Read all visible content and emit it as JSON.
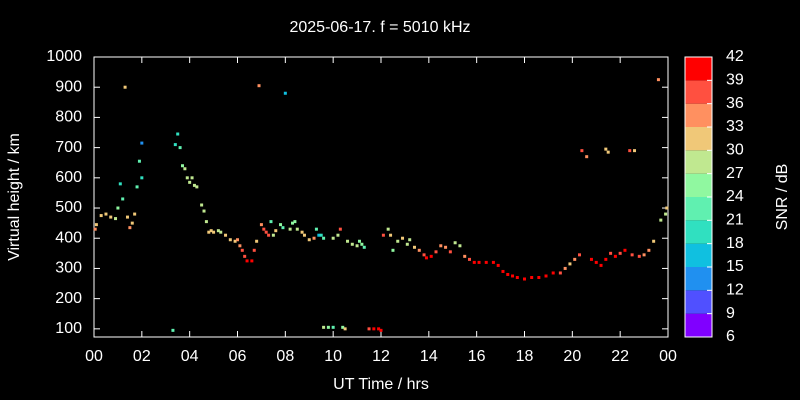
{
  "chart_data": {
    "type": "scatter",
    "title": "2025-06-17. f = 5010 kHz",
    "xlabel": "UT Time / hrs",
    "ylabel": "Virtual height / km",
    "xlim": [
      0,
      24
    ],
    "xticks": [
      {
        "value": 0,
        "label": "00"
      },
      {
        "value": 2,
        "label": "02"
      },
      {
        "value": 4,
        "label": "04"
      },
      {
        "value": 6,
        "label": "06"
      },
      {
        "value": 8,
        "label": "08"
      },
      10,
      12,
      14,
      16,
      18,
      20,
      22,
      {
        "value": 24,
        "label": "00"
      }
    ],
    "ylim": [
      73,
      1000
    ],
    "yticks": [
      100,
      200,
      300,
      400,
      500,
      600,
      700,
      800,
      900,
      1000
    ],
    "colorbar": {
      "label": "SNR / dB",
      "lim": [
        6,
        42
      ],
      "ticks": [
        6,
        9,
        12,
        15,
        18,
        21,
        24,
        27,
        30,
        33,
        36,
        39,
        42
      ],
      "colors": [
        "#8000ff",
        "#5050ff",
        "#2090f0",
        "#10c0e0",
        "#30e0c0",
        "#60f0b0",
        "#90f8a0",
        "#c0e890",
        "#f0c878",
        "#ff9060",
        "#ff5040",
        "#ff0000"
      ]
    },
    "series": [
      {
        "x": [
          0.05,
          0.1,
          0.3,
          0.5,
          0.7,
          0.9,
          1.0,
          1.1,
          1.2,
          1.3,
          1.4,
          1.5,
          1.6,
          1.7,
          1.8,
          1.9,
          2.0,
          2.0,
          3.3,
          3.4,
          3.5,
          3.6,
          3.7,
          3.8,
          3.9,
          4.0,
          4.1,
          4.2,
          4.3,
          4.5,
          4.6,
          4.7,
          4.8,
          4.9,
          5.0,
          5.2,
          5.3,
          5.5,
          5.7,
          5.9,
          6.0,
          6.1,
          6.2,
          6.3,
          6.4,
          6.6,
          6.7,
          6.8,
          6.9,
          7.0,
          7.1,
          7.2,
          7.3,
          7.4,
          7.5,
          7.6,
          7.8,
          7.9,
          8.0,
          8.2,
          8.3,
          8.4,
          8.5,
          8.7,
          8.8,
          9.0,
          9.2,
          9.3,
          9.4,
          9.5,
          9.6,
          9.6,
          9.8,
          10.0,
          10.0,
          10.2,
          10.3,
          10.4,
          10.5,
          10.6,
          10.8,
          11.0,
          11.1,
          11.2,
          11.3,
          11.5,
          11.7,
          11.9,
          12.0,
          12.1,
          12.3,
          12.4,
          12.5,
          12.7,
          12.9,
          13.1,
          13.2,
          13.4,
          13.6,
          13.8,
          13.9,
          14.1,
          14.3,
          14.5,
          14.7,
          14.9,
          15.1,
          15.3,
          15.5,
          15.7,
          15.9,
          16.1,
          16.4,
          16.7,
          16.9,
          17.1,
          17.3,
          17.5,
          17.7,
          18.0,
          18.3,
          18.6,
          18.9,
          19.2,
          19.5,
          19.7,
          19.9,
          20.1,
          20.3,
          20.4,
          20.6,
          20.8,
          21.0,
          21.2,
          21.4,
          21.4,
          21.5,
          21.6,
          21.8,
          22.0,
          22.2,
          22.4,
          22.5,
          22.6,
          22.8,
          23.0,
          23.2,
          23.4,
          23.6,
          23.7,
          23.9,
          23.95
        ],
        "values": [
          430,
          445,
          475,
          480,
          470,
          465,
          500,
          580,
          530,
          900,
          470,
          435,
          450,
          480,
          570,
          655,
          600,
          715,
          95,
          710,
          745,
          700,
          640,
          630,
          600,
          585,
          600,
          575,
          570,
          510,
          490,
          455,
          420,
          425,
          420,
          425,
          420,
          410,
          395,
          390,
          395,
          375,
          360,
          340,
          325,
          325,
          360,
          390,
          905,
          445,
          430,
          420,
          410,
          455,
          410,
          425,
          445,
          435,
          880,
          430,
          450,
          455,
          430,
          420,
          410,
          395,
          400,
          430,
          410,
          410,
          400,
          105,
          105,
          105,
          400,
          410,
          430,
          105,
          100,
          390,
          380,
          375,
          390,
          380,
          370,
          100,
          100,
          100,
          95,
          410,
          430,
          410,
          360,
          390,
          400,
          380,
          395,
          370,
          360,
          345,
          335,
          340,
          355,
          375,
          370,
          355,
          385,
          375,
          340,
          330,
          320,
          320,
          320,
          320,
          310,
          290,
          280,
          275,
          270,
          265,
          270,
          270,
          275,
          285,
          285,
          300,
          315,
          330,
          345,
          690,
          670,
          330,
          320,
          310,
          330,
          695,
          685,
          350,
          340,
          350,
          360,
          690,
          345,
          690,
          340,
          345,
          360,
          390,
          925,
          460,
          480,
          500
        ],
        "snr": [
          33,
          30,
          30,
          30,
          30,
          27,
          24,
          18,
          21,
          30,
          30,
          33,
          30,
          30,
          21,
          21,
          18,
          12,
          21,
          18,
          18,
          21,
          24,
          27,
          27,
          27,
          27,
          27,
          27,
          27,
          27,
          27,
          30,
          30,
          30,
          27,
          27,
          30,
          30,
          30,
          33,
          33,
          36,
          36,
          39,
          39,
          36,
          30,
          33,
          33,
          36,
          36,
          36,
          21,
          27,
          30,
          24,
          21,
          15,
          27,
          24,
          24,
          27,
          30,
          30,
          30,
          33,
          21,
          15,
          18,
          21,
          27,
          24,
          21,
          27,
          27,
          36,
          24,
          30,
          27,
          27,
          27,
          24,
          24,
          21,
          36,
          39,
          42,
          39,
          36,
          27,
          30,
          24,
          27,
          30,
          27,
          27,
          30,
          33,
          36,
          39,
          39,
          36,
          33,
          33,
          36,
          27,
          27,
          33,
          36,
          39,
          39,
          39,
          39,
          42,
          39,
          42,
          39,
          42,
          42,
          39,
          42,
          39,
          39,
          36,
          33,
          30,
          33,
          36,
          36,
          33,
          39,
          39,
          42,
          39,
          30,
          30,
          36,
          39,
          36,
          39,
          36,
          36,
          30,
          36,
          33,
          33,
          30,
          33,
          27,
          27,
          30
        ]
      }
    ]
  }
}
